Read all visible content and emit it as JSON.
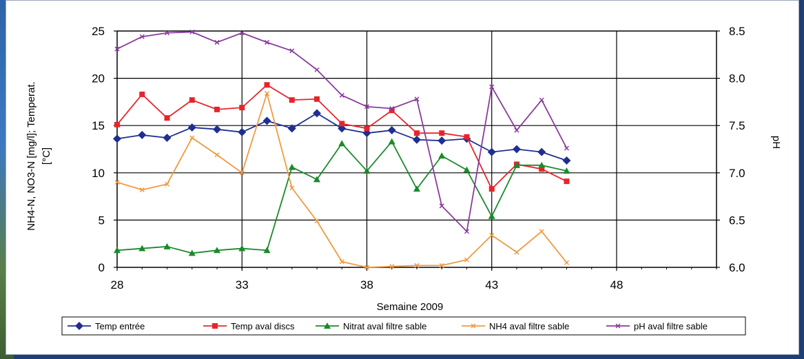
{
  "chart_data": {
    "type": "line",
    "xlabel": "Semaine 2009",
    "ylabel_left_lines": [
      "NH4-N, NO3-N [mg/l]; Temperat.",
      "[°C]"
    ],
    "ylabel_right": "pH",
    "xlim": [
      28,
      52
    ],
    "ylim_left": [
      0,
      25
    ],
    "ylim_right": [
      6.0,
      8.5
    ],
    "x_ticks": [
      28,
      33,
      38,
      43,
      48
    ],
    "y_ticks_left": [
      0,
      5,
      10,
      15,
      20,
      25
    ],
    "y_ticks_right": [
      "6.0",
      "6.5",
      "7.0",
      "7.5",
      "8.0",
      "8.5"
    ],
    "grid": true,
    "legend_position": "bottom",
    "series": [
      {
        "name": "Temp entrée",
        "color": "#1f2f8f",
        "marker": "diamond",
        "axis": "left",
        "x": [
          28,
          29,
          30,
          31,
          32,
          33,
          34,
          35,
          36,
          37,
          38,
          39,
          40,
          41,
          42,
          43,
          44,
          45,
          46
        ],
        "y": [
          13.6,
          14.0,
          13.7,
          14.8,
          14.6,
          14.3,
          15.5,
          14.7,
          16.3,
          14.7,
          14.2,
          14.5,
          13.5,
          13.4,
          13.6,
          12.2,
          12.5,
          12.2,
          11.3
        ]
      },
      {
        "name": "Temp aval discs",
        "color": "#e8242b",
        "marker": "square",
        "axis": "left",
        "x": [
          28,
          29,
          30,
          31,
          32,
          33,
          34,
          35,
          36,
          37,
          38,
          39,
          40,
          41,
          42,
          43,
          44,
          45,
          46
        ],
        "y": [
          15.1,
          18.3,
          15.8,
          17.7,
          16.7,
          16.9,
          19.3,
          17.7,
          17.8,
          15.2,
          14.7,
          16.6,
          14.2,
          14.2,
          13.8,
          8.3,
          10.9,
          10.4,
          9.1
        ]
      },
      {
        "name": "Nitrat aval filtre sable",
        "color": "#1a8a2a",
        "marker": "triangle",
        "axis": "left",
        "x": [
          28,
          29,
          30,
          31,
          32,
          33,
          34,
          35,
          36,
          37,
          38,
          39,
          40,
          41,
          42,
          43,
          44,
          45,
          46
        ],
        "y": [
          1.8,
          2.0,
          2.2,
          1.5,
          1.8,
          2.0,
          1.8,
          10.6,
          9.3,
          13.1,
          10.2,
          13.3,
          8.3,
          11.8,
          10.3,
          5.4,
          10.8,
          10.8,
          10.2
        ]
      },
      {
        "name": "NH4 aval filtre sable",
        "color": "#f09a40",
        "marker": "x",
        "axis": "left",
        "x": [
          28,
          29,
          30,
          31,
          32,
          33,
          34,
          35,
          36,
          37,
          38,
          39,
          40,
          41,
          42,
          43,
          44,
          45,
          46
        ],
        "y": [
          9.0,
          8.2,
          8.8,
          13.7,
          11.9,
          10.0,
          18.4,
          8.4,
          4.9,
          0.6,
          0.0,
          0.1,
          0.2,
          0.2,
          0.8,
          3.4,
          1.6,
          3.8,
          0.5
        ]
      },
      {
        "name": "pH aval filtre sable",
        "color": "#8a3a9e",
        "marker": "x",
        "axis": "right",
        "x": [
          28,
          29,
          30,
          31,
          32,
          33,
          34,
          35,
          36,
          37,
          38,
          39,
          40,
          41,
          42,
          43,
          44,
          45,
          46
        ],
        "y": [
          8.31,
          8.44,
          8.48,
          8.49,
          8.38,
          8.48,
          8.38,
          8.29,
          8.09,
          7.82,
          7.7,
          7.68,
          7.78,
          6.65,
          6.38,
          7.91,
          7.45,
          7.77,
          7.26
        ]
      }
    ]
  }
}
